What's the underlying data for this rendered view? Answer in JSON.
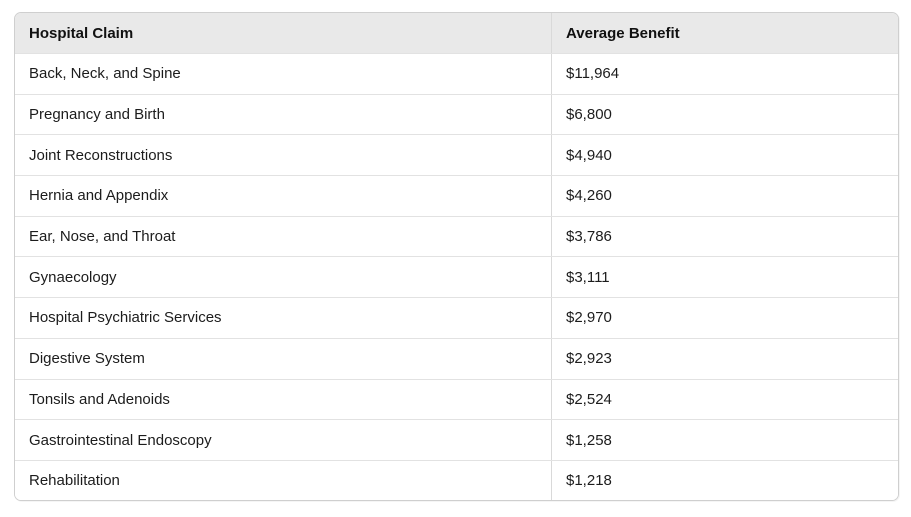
{
  "chart_data": {
    "type": "table",
    "columns": [
      "Hospital Claim",
      "Average Benefit"
    ],
    "rows": [
      [
        "Back, Neck, and Spine",
        "$11,964"
      ],
      [
        "Pregnancy and Birth",
        "$6,800"
      ],
      [
        "Joint Reconstructions",
        "$4,940"
      ],
      [
        "Hernia and Appendix",
        "$4,260"
      ],
      [
        "Ear, Nose, and Throat",
        "$3,786"
      ],
      [
        "Gynaecology",
        "$3,111"
      ],
      [
        "Hospital Psychiatric Services",
        "$2,970"
      ],
      [
        "Digestive System",
        "$2,923"
      ],
      [
        "Tonsils and Adenoids",
        "$2,524"
      ],
      [
        "Gastrointestinal Endoscopy",
        "$1,258"
      ],
      [
        "Rehabilitation",
        "$1,218"
      ]
    ],
    "values": [
      11964,
      6800,
      4940,
      4260,
      3786,
      3111,
      2970,
      2923,
      2524,
      1258,
      1218
    ],
    "title": ""
  },
  "colors": {
    "header_bg": "#e9e9e9",
    "outer_border": "#cfcfcf",
    "row_divider": "#e2e2e2",
    "column_divider": "#d9d9d9",
    "text": "#1c1c1c",
    "background": "#ffffff"
  }
}
